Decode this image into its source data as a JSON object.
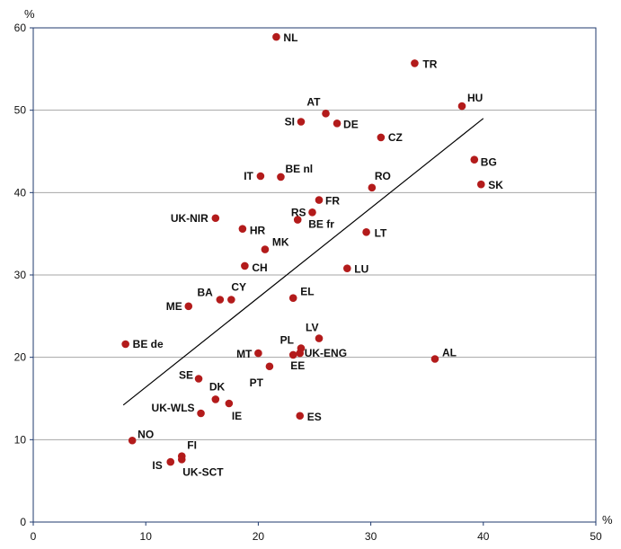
{
  "chart_data": {
    "type": "scatter",
    "title": "",
    "xlabel": "%",
    "ylabel": "%",
    "xlim": [
      0,
      50
    ],
    "ylim": [
      0,
      60
    ],
    "xticks": [
      0,
      10,
      20,
      30,
      40,
      50
    ],
    "yticks": [
      0,
      10,
      20,
      30,
      40,
      50,
      60
    ],
    "grid": "horizontal",
    "colors": {
      "point": "#b31b1b",
      "grid": "#a6a6a6",
      "axis": "#1f3a6e",
      "trend": "#000000"
    },
    "trendline": {
      "x": [
        8,
        40
      ],
      "y": [
        14.2,
        49
      ]
    },
    "points": [
      {
        "label": "NL",
        "x": 21.6,
        "y": 58.9
      },
      {
        "label": "TR",
        "x": 33.9,
        "y": 55.7
      },
      {
        "label": "HU",
        "x": 38.1,
        "y": 50.5
      },
      {
        "label": "AT",
        "x": 26.0,
        "y": 49.6
      },
      {
        "label": "SI",
        "x": 23.8,
        "y": 48.6
      },
      {
        "label": "DE",
        "x": 27.0,
        "y": 48.4
      },
      {
        "label": "CZ",
        "x": 30.9,
        "y": 46.7
      },
      {
        "label": "BG",
        "x": 39.2,
        "y": 44.0
      },
      {
        "label": "IT",
        "x": 20.2,
        "y": 42.0
      },
      {
        "label": "BE nl",
        "x": 22.0,
        "y": 41.9
      },
      {
        "label": "SK",
        "x": 39.8,
        "y": 41.0
      },
      {
        "label": "RO",
        "x": 30.1,
        "y": 40.6
      },
      {
        "label": "FR",
        "x": 25.4,
        "y": 39.1
      },
      {
        "label": "RS",
        "x": 24.8,
        "y": 37.6
      },
      {
        "label": "BE fr",
        "x": 23.5,
        "y": 36.7
      },
      {
        "label": "UK-NIR",
        "x": 16.2,
        "y": 36.9
      },
      {
        "label": "HR",
        "x": 18.6,
        "y": 35.6
      },
      {
        "label": "LT",
        "x": 29.6,
        "y": 35.2
      },
      {
        "label": "MK",
        "x": 20.6,
        "y": 33.1
      },
      {
        "label": "CH",
        "x": 18.8,
        "y": 31.1
      },
      {
        "label": "LU",
        "x": 27.9,
        "y": 30.8
      },
      {
        "label": "EL",
        "x": 23.1,
        "y": 27.2
      },
      {
        "label": "BA",
        "x": 16.6,
        "y": 27.0
      },
      {
        "label": "CY",
        "x": 17.6,
        "y": 27.0
      },
      {
        "label": "ME",
        "x": 13.8,
        "y": 26.2
      },
      {
        "label": "LV",
        "x": 25.4,
        "y": 22.3
      },
      {
        "label": "BE de",
        "x": 8.2,
        "y": 21.6
      },
      {
        "label": "PL",
        "x": 23.8,
        "y": 21.1
      },
      {
        "label": "UK-ENG",
        "x": 23.7,
        "y": 20.5
      },
      {
        "label": "MT",
        "x": 20.0,
        "y": 20.5
      },
      {
        "label": "EE",
        "x": 23.1,
        "y": 20.3
      },
      {
        "label": "AL",
        "x": 35.7,
        "y": 19.8
      },
      {
        "label": "PT",
        "x": 21.0,
        "y": 18.9
      },
      {
        "label": "SE",
        "x": 14.7,
        "y": 17.4
      },
      {
        "label": "DK",
        "x": 16.2,
        "y": 14.9
      },
      {
        "label": "IE",
        "x": 17.4,
        "y": 14.4
      },
      {
        "label": "UK-WLS",
        "x": 14.9,
        "y": 13.2
      },
      {
        "label": "ES",
        "x": 23.7,
        "y": 12.9
      },
      {
        "label": "NO",
        "x": 8.8,
        "y": 9.9
      },
      {
        "label": "FI",
        "x": 13.2,
        "y": 8.0
      },
      {
        "label": "UK-SCT",
        "x": 13.2,
        "y": 7.6
      },
      {
        "label": "IS",
        "x": 12.2,
        "y": 7.3
      }
    ]
  }
}
